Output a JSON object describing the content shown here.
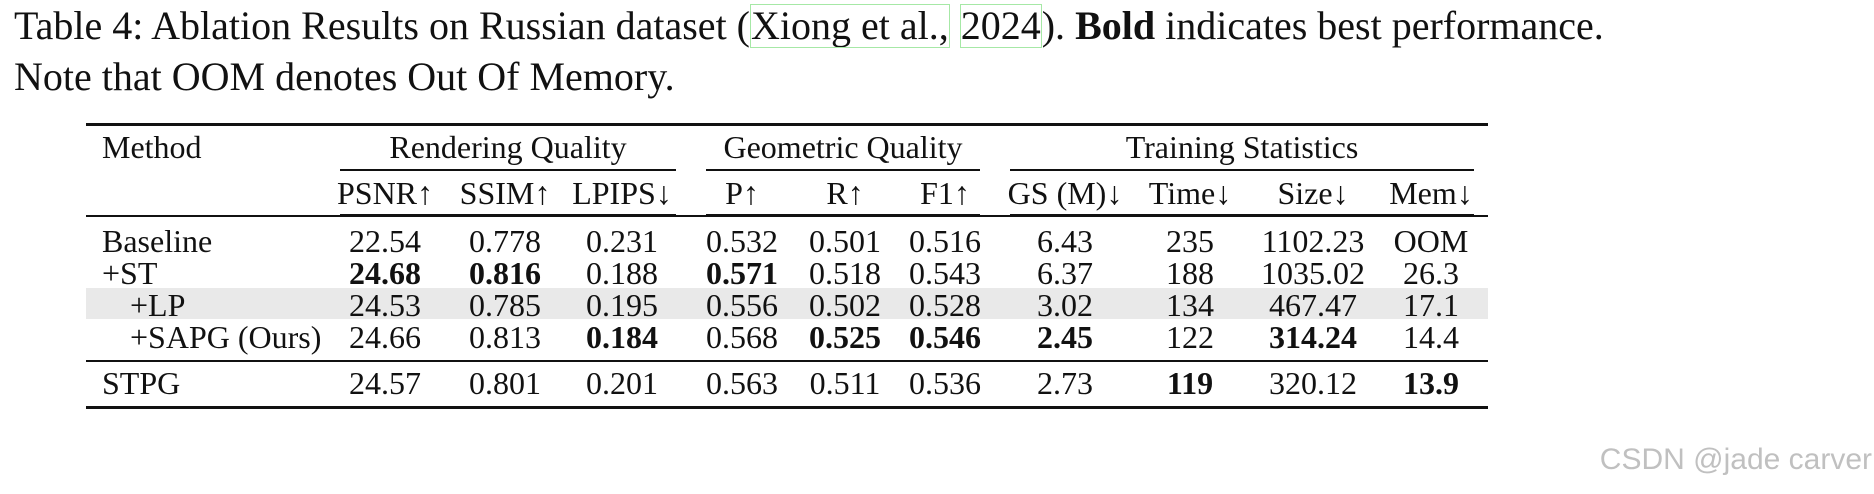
{
  "caption": {
    "part1": "Table 4: Ablation Results on Russian dataset (",
    "cite_author": "Xiong et al.,",
    "cite_year": "2024",
    "part2": "). ",
    "bold_word": "Bold",
    "part3": " indicates best performance.",
    "line2": "Note that OOM denotes Out Of Memory."
  },
  "table": {
    "method_header": "Method",
    "groups": [
      "Rendering Quality",
      "Geometric Quality",
      "Training Statistics"
    ],
    "columns": [
      "PSNR↑",
      "SSIM↑",
      "LPIPS↓",
      "P↑",
      "R↑",
      "F1↑",
      "GS (M)↓",
      "Time↓",
      "Size↓",
      "Mem↓"
    ],
    "rows": [
      {
        "method": "Baseline",
        "values": [
          "22.54",
          "0.778",
          "0.231",
          "0.532",
          "0.501",
          "0.516",
          "6.43",
          "235",
          "1102.23",
          "OOM"
        ],
        "bold": [],
        "indent": false,
        "shaded": false
      },
      {
        "method": "+ST",
        "values": [
          "24.68",
          "0.816",
          "0.188",
          "0.571",
          "0.518",
          "0.543",
          "6.37",
          "188",
          "1035.02",
          "26.3"
        ],
        "bold": [
          0,
          1,
          3
        ],
        "indent": false,
        "shaded": false
      },
      {
        "method": "+LP",
        "values": [
          "24.53",
          "0.785",
          "0.195",
          "0.556",
          "0.502",
          "0.528",
          "3.02",
          "134",
          "467.47",
          "17.1"
        ],
        "bold": [],
        "indent": true,
        "shaded": true
      },
      {
        "method": "+SAPG (Ours)",
        "values": [
          "24.66",
          "0.813",
          "0.184",
          "0.568",
          "0.525",
          "0.546",
          "2.45",
          "122",
          "314.24",
          "14.4"
        ],
        "bold": [
          2,
          4,
          5,
          6,
          8
        ],
        "indent": true,
        "shaded": false
      },
      {
        "method": "STPG",
        "values": [
          "24.57",
          "0.801",
          "0.201",
          "0.563",
          "0.511",
          "0.536",
          "2.73",
          "119",
          "320.12",
          "13.9"
        ],
        "bold": [
          7,
          9
        ],
        "indent": false,
        "shaded": false
      }
    ]
  },
  "watermark": "CSDN @jade carver"
}
